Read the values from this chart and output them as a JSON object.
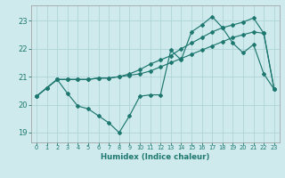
{
  "xlabel": "Humidex (Indice chaleur)",
  "bg_color": "#ceeaec",
  "grid_color": "#b0d4d8",
  "line_color": "#1e7870",
  "xlim": [
    -0.5,
    23.5
  ],
  "ylim": [
    18.65,
    23.55
  ],
  "yticks": [
    19,
    20,
    21,
    22,
    23
  ],
  "xticks": [
    0,
    1,
    2,
    3,
    4,
    5,
    6,
    7,
    8,
    9,
    10,
    11,
    12,
    13,
    14,
    15,
    16,
    17,
    18,
    19,
    20,
    21,
    22,
    23
  ],
  "line1_x": [
    0,
    1,
    2,
    3,
    4,
    5,
    6,
    7,
    8,
    9,
    10,
    11,
    12,
    13,
    14,
    15,
    16,
    17,
    18,
    19,
    20,
    21,
    22,
    23
  ],
  "line1_y": [
    20.3,
    20.6,
    20.9,
    20.9,
    20.9,
    20.9,
    20.95,
    20.95,
    21.0,
    21.05,
    21.1,
    21.2,
    21.35,
    21.5,
    21.65,
    21.8,
    21.95,
    22.1,
    22.25,
    22.4,
    22.5,
    22.6,
    22.55,
    20.55
  ],
  "line2_x": [
    0,
    1,
    2,
    3,
    4,
    5,
    6,
    7,
    8,
    9,
    10,
    11,
    12,
    13,
    14,
    15,
    16,
    17,
    18,
    19,
    20,
    21,
    22,
    23
  ],
  "line2_y": [
    20.3,
    20.6,
    20.9,
    20.4,
    19.95,
    19.85,
    19.6,
    19.35,
    19.0,
    19.6,
    20.3,
    20.35,
    20.35,
    21.95,
    21.6,
    22.6,
    22.85,
    23.15,
    22.75,
    22.2,
    21.85,
    22.15,
    21.1,
    20.55
  ],
  "line3_x": [
    0,
    1,
    2,
    3,
    4,
    5,
    6,
    7,
    8,
    9,
    10,
    11,
    12,
    13,
    14,
    15,
    16,
    17,
    18,
    19,
    20,
    21,
    22,
    23
  ],
  "line3_y": [
    20.3,
    20.6,
    20.9,
    20.9,
    20.9,
    20.9,
    20.95,
    20.95,
    21.0,
    21.1,
    21.25,
    21.45,
    21.6,
    21.75,
    22.0,
    22.2,
    22.4,
    22.6,
    22.75,
    22.85,
    22.95,
    23.1,
    22.55,
    20.55
  ]
}
